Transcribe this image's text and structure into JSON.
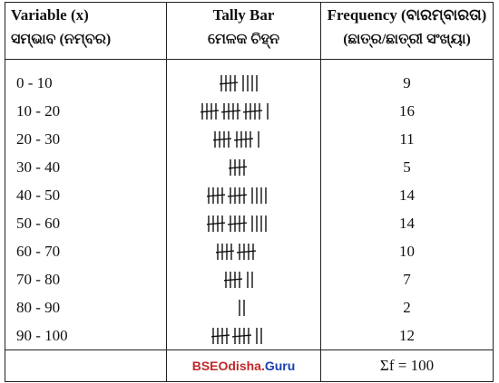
{
  "table": {
    "headers": [
      {
        "en": "Variable (x)",
        "or": "ସମ୍ଭାବ (ନମ୍ବର)"
      },
      {
        "en": "Tally Bar",
        "or": "ମେଳକ ଚିହ୍ନ"
      },
      {
        "en": "Frequency (ବାରମ୍ବାରତା)",
        "or": "(ଛାତ୍ର/ଛାତ୍ରୀ ସଂଖ୍ୟା)"
      }
    ],
    "rows": [
      {
        "variable": "0 - 10",
        "tally": 9,
        "frequency": "9"
      },
      {
        "variable": "10 - 20",
        "tally": 16,
        "frequency": "16"
      },
      {
        "variable": "20 - 30",
        "tally": 11,
        "frequency": "11"
      },
      {
        "variable": "30 - 40",
        "tally": 5,
        "frequency": "5"
      },
      {
        "variable": "40 - 50",
        "tally": 14,
        "frequency": "14"
      },
      {
        "variable": "50 - 60",
        "tally": 14,
        "frequency": "14"
      },
      {
        "variable": "60 - 70",
        "tally": 10,
        "frequency": "10"
      },
      {
        "variable": "70 - 80",
        "tally": 7,
        "frequency": "7"
      },
      {
        "variable": "80 - 90",
        "tally": 2,
        "frequency": "2"
      },
      {
        "variable": "90 - 100",
        "tally": 12,
        "frequency": "12"
      }
    ],
    "footer": {
      "credit_main": "BSEOdisha.",
      "credit_suffix": "Guru",
      "sum": "Σf = 100"
    }
  }
}
